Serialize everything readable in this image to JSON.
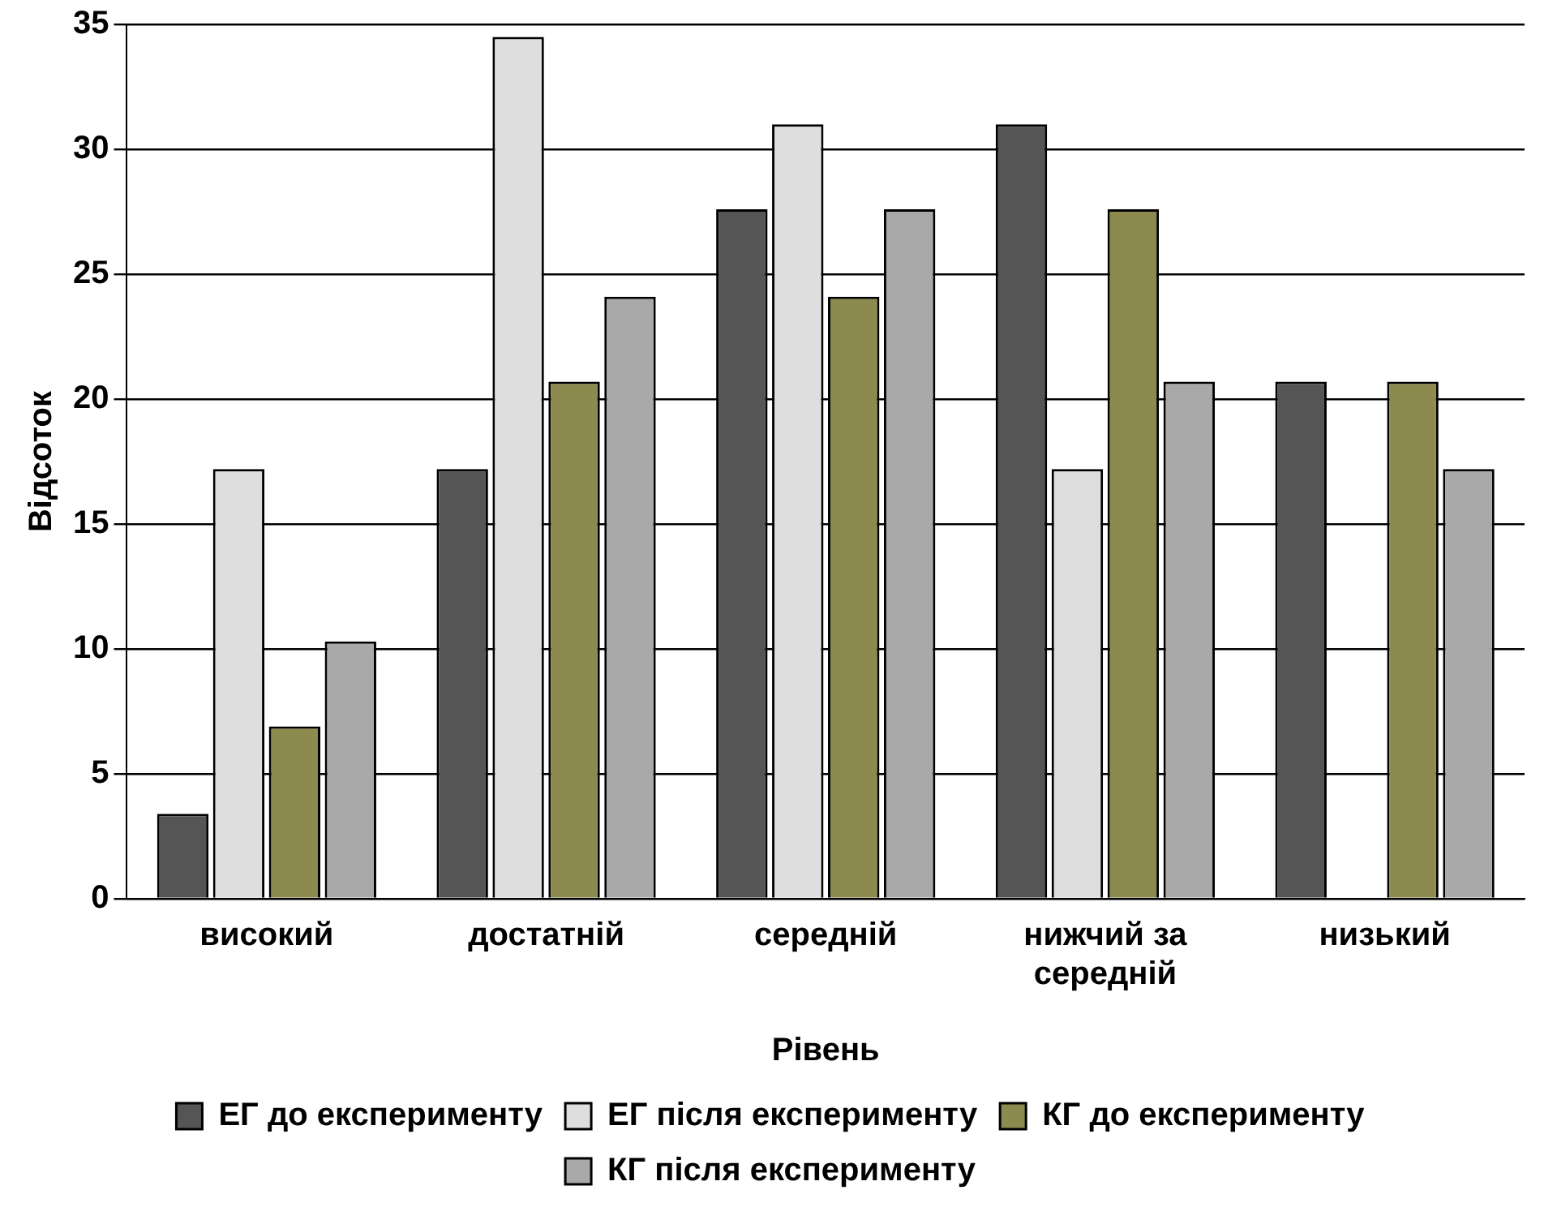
{
  "chart_data": {
    "type": "bar",
    "xlabel": "Рівень",
    "ylabel": "Відсоток",
    "categories": [
      "високий",
      "достатній",
      "середній",
      "нижчий за середній",
      "низький"
    ],
    "series": [
      {
        "name": "ЕГ до експерименту",
        "color": "#555555",
        "values": [
          3.4,
          17.2,
          27.6,
          31,
          20.7
        ]
      },
      {
        "name": "ЕГ після експерименту",
        "color": "#dedede",
        "values": [
          17.2,
          34.5,
          31,
          17.2,
          0
        ]
      },
      {
        "name": "КГ до експерименту",
        "color": "#8c8a4e",
        "values": [
          6.9,
          20.7,
          24.1,
          27.6,
          20.7
        ]
      },
      {
        "name": "КГ після експерименту",
        "color": "#a9a9a9",
        "values": [
          10.3,
          24.1,
          27.6,
          20.7,
          17.2
        ]
      }
    ],
    "ylim": [
      0,
      35
    ],
    "yticks": [
      0,
      5,
      10,
      15,
      20,
      25,
      30,
      35
    ],
    "grid": "y",
    "legend": "bottom"
  }
}
